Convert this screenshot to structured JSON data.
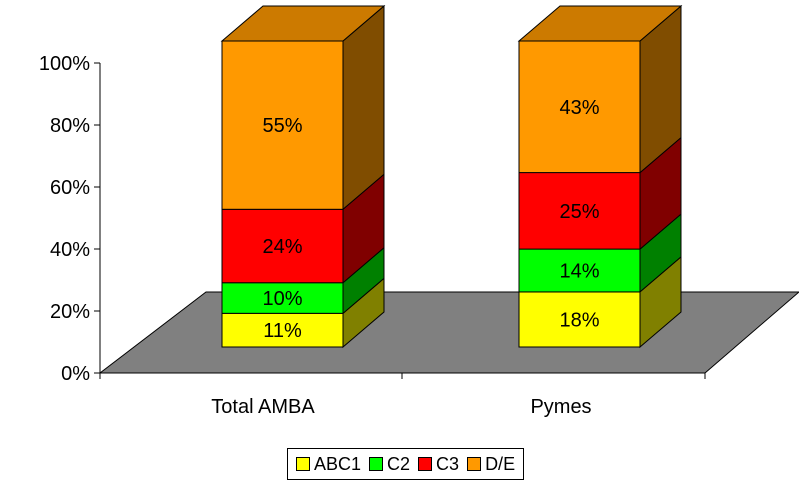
{
  "chart_data": {
    "type": "bar",
    "stacked": true,
    "percent": true,
    "three_d": true,
    "categories": [
      "Total AMBA",
      "Pymes"
    ],
    "series": [
      {
        "name": "ABC1",
        "values": [
          11,
          18
        ],
        "labels": [
          "11%",
          "18%"
        ],
        "color": "#FFFF00"
      },
      {
        "name": "C2",
        "values": [
          10,
          14
        ],
        "labels": [
          "10%",
          "14%"
        ],
        "color": "#00FF00"
      },
      {
        "name": "C3",
        "values": [
          24,
          25
        ],
        "labels": [
          "24%",
          "25%"
        ],
        "color": "#FF0000"
      },
      {
        "name": "D/E",
        "values": [
          55,
          43
        ],
        "labels": [
          "55%",
          "43%"
        ],
        "color": "#FF9900"
      }
    ],
    "y_ticks": [
      "0%",
      "20%",
      "40%",
      "60%",
      "80%",
      "100%"
    ],
    "ylim": [
      0,
      100
    ],
    "title": "",
    "xlabel": "",
    "ylabel": "",
    "grid": false,
    "legend_position": "bottom",
    "floor_color": "#808080"
  }
}
